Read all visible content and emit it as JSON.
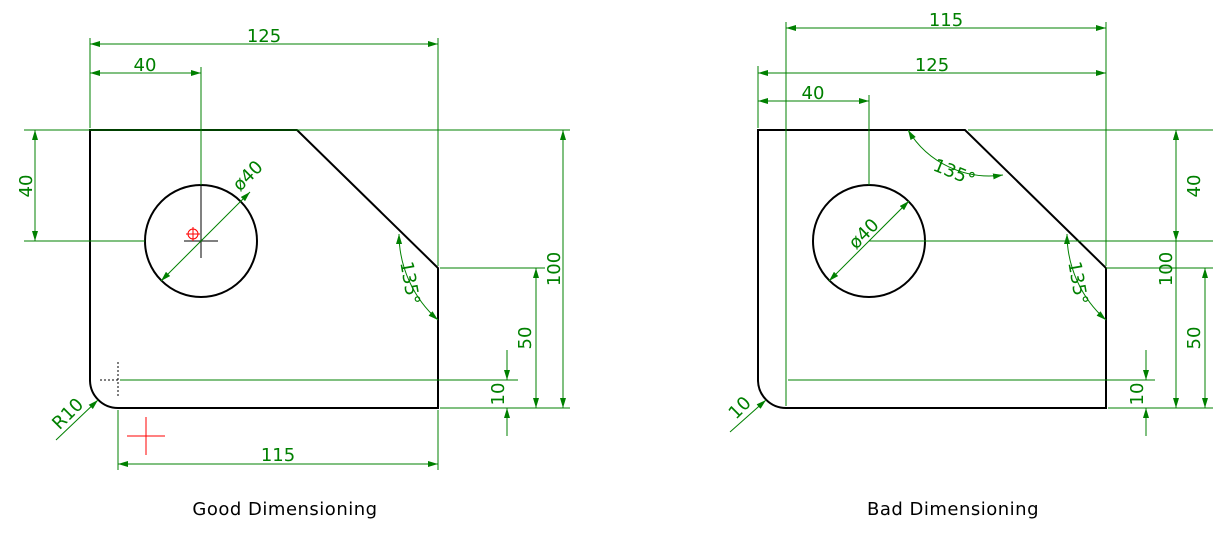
{
  "colors": {
    "outline": "#000000",
    "dimension": "#008000",
    "center_mark": "#ff0000"
  },
  "good": {
    "caption": "Good Dimensioning",
    "dims": {
      "width_overall": "125",
      "hole_x": "40",
      "hole_y": "40",
      "hole_dia": "ø40",
      "angle": "135°",
      "height_overall": "100",
      "right_edge": "50",
      "fillet_offset": "10",
      "radius": "R10",
      "bottom_length": "115"
    }
  },
  "bad": {
    "caption": "Bad Dimensioning",
    "dims": {
      "top_length": "115",
      "width_overall": "125",
      "hole_x": "40",
      "hole_dia": "ø40",
      "angle_top": "135°",
      "angle_right": "135°",
      "chamfer_v": "40",
      "height_overall": "100",
      "right_edge": "50",
      "fillet_offset": "10",
      "radius": "10"
    }
  }
}
